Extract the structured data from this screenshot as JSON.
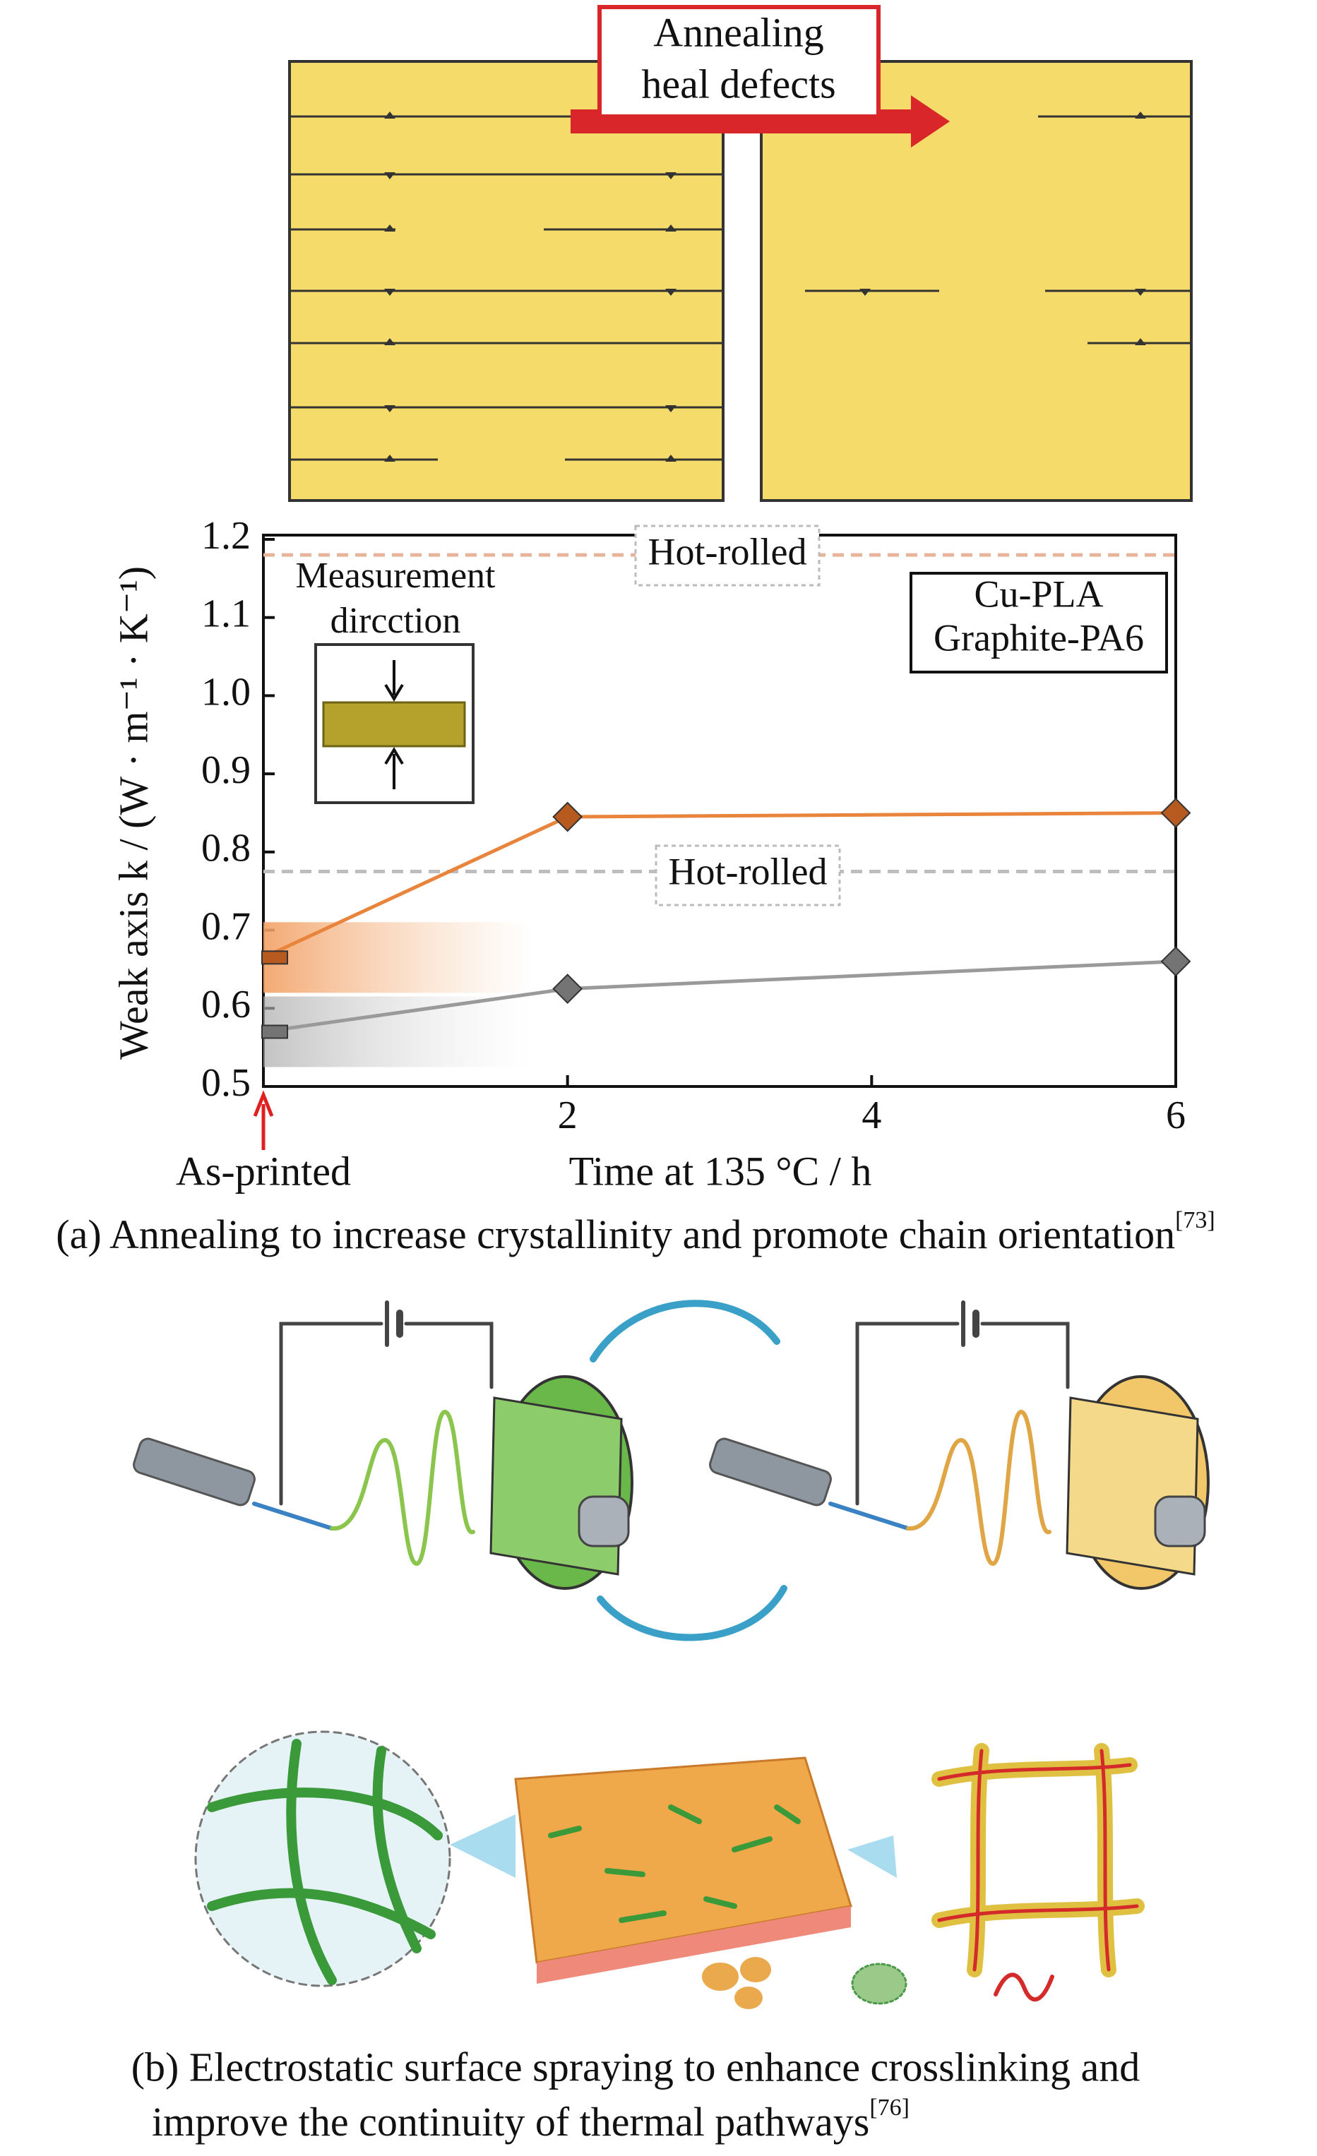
{
  "diagram_a": {
    "arrow_label": [
      "Annealing",
      "heal defects"
    ]
  },
  "chart_data": {
    "type": "line",
    "x": [
      0,
      2,
      6
    ],
    "xlim": [
      0,
      6
    ],
    "xticks": [
      2,
      4,
      6
    ],
    "ylim": [
      0.5,
      1.2
    ],
    "yticks": [
      0.5,
      0.6,
      0.7,
      0.8,
      0.9,
      {
        "value": 1,
        "label": "1.0"
      },
      1.1,
      1.2
    ],
    "xlabel": "Time at 135 °C / h",
    "ylabel": "Weak axis k / (W · m⁻¹ · K⁻¹)",
    "x_start_label": "As-printed",
    "series": [
      {
        "name": "Cu-PLA",
        "color": "#e8843c",
        "marker_color": "#b65a1f",
        "values": [
          0.665,
          0.845,
          0.85
        ]
      },
      {
        "name": "Graphite-PA6",
        "color": "#9a9a9a",
        "marker_color": "#747474",
        "values": [
          0.57,
          0.625,
          0.66
        ]
      }
    ],
    "reference_lines": [
      {
        "label": "Hot-rolled",
        "value": 1.18,
        "color": "#e7b49a"
      },
      {
        "label": "Hot-rolled",
        "value": 0.775,
        "color": "#bdbdbd"
      }
    ],
    "inset_label": [
      "Measurement",
      "dircction"
    ],
    "legend": "upper right"
  },
  "caption_a": {
    "text": "(a) Annealing to increase crystallinity and promote chain orientation",
    "ref": "[73]"
  },
  "caption_b": {
    "lines": [
      "(b) Electrostatic surface spraying to enhance crosslinking and",
      "improve the continuity of thermal pathways"
    ],
    "ref": "[76]"
  }
}
